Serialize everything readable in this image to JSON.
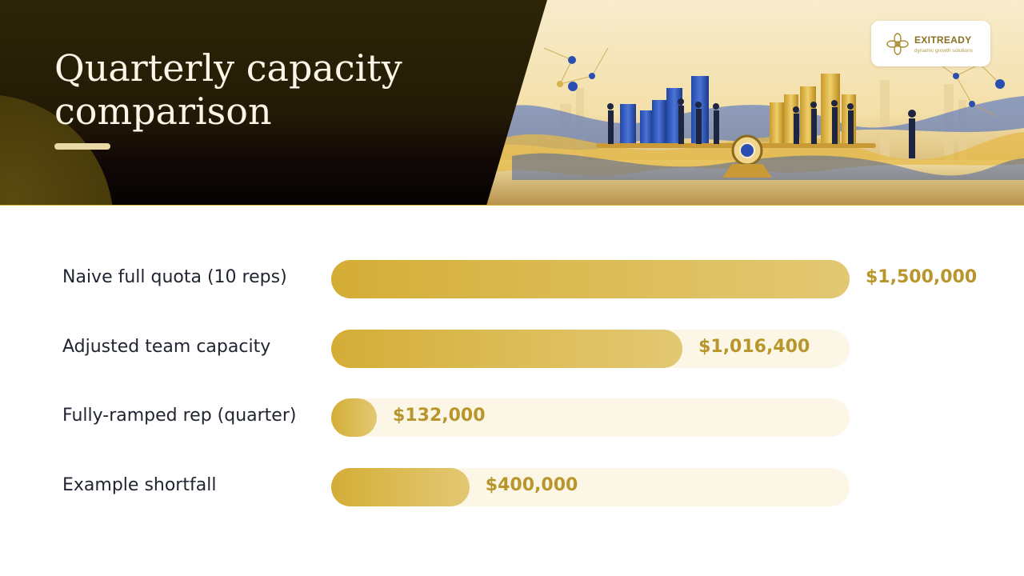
{
  "header": {
    "title": "Quarterly capacity comparison"
  },
  "logo": {
    "name": "EXITREADY",
    "tagline": "dynamic growth solutions",
    "icon": "flower-logo-icon"
  },
  "colors": {
    "bar": "#d4ad36",
    "track": "#fbf6e6",
    "value_text": "#b8962c",
    "header_dark": "#231a06"
  },
  "chart_data": {
    "type": "bar",
    "orientation": "horizontal",
    "categories": [
      "Naive full quota (10 reps)",
      "Adjusted team capacity",
      "Fully-ramped rep (quarter)",
      "Example shortfall"
    ],
    "values": [
      1500000,
      1016400,
      132000,
      400000
    ],
    "value_labels": [
      "$1,500,000",
      "$1,016,400",
      "$132,000",
      "$400,000"
    ],
    "xlim": [
      0,
      1500000
    ],
    "grid": false
  }
}
